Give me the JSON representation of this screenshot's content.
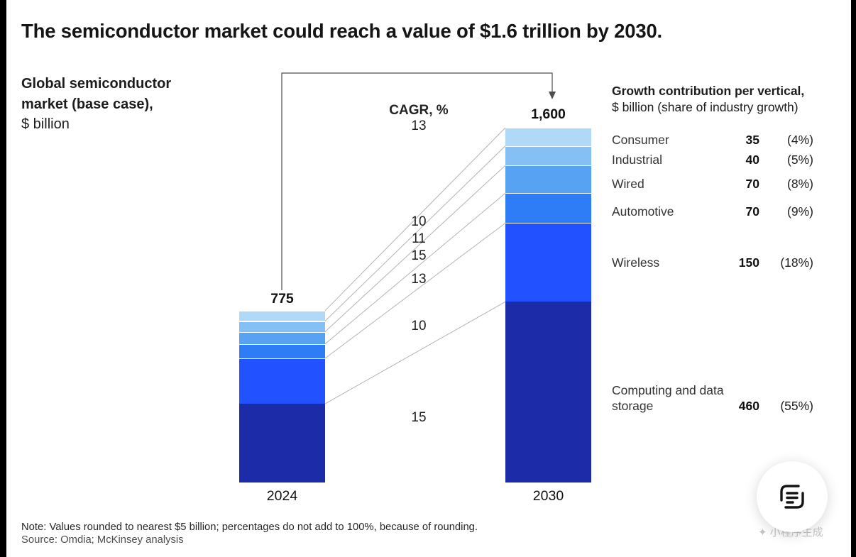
{
  "page": {
    "title": "The semiconductor market could reach a value of $1.6 trillion by 2030.",
    "note": "Note: Values rounded to nearest $5 billion; percentages do not add to 100%, because of rounding.",
    "source": "Source: Omdia; McKinsey analysis",
    "watermark": "小程序生成",
    "watermark_icon": "✦"
  },
  "chart_data": {
    "type": "bar",
    "stacked": true,
    "title": "Global semiconductor market (base case),",
    "unit": "$ billion",
    "categories": [
      "2024",
      "2030"
    ],
    "totals": [
      "775",
      "1,600"
    ],
    "cagr_header": "CAGR, %",
    "overall_cagr": "13",
    "ylim": [
      0,
      1600
    ],
    "legend_position": "none",
    "grid": false,
    "series": [
      {
        "name": "Computing and data storage",
        "color": "#1c2ba8",
        "values": [
          355,
          815
        ],
        "cagr": "15"
      },
      {
        "name": "Wireless",
        "color": "#2251ff",
        "values": [
          205,
          355
        ],
        "cagr": "10"
      },
      {
        "name": "Automotive",
        "color": "#2e7cf6",
        "values": [
          65,
          135
        ],
        "cagr": "13"
      },
      {
        "name": "Wired",
        "color": "#57a3f1",
        "values": [
          55,
          125
        ],
        "cagr": "15"
      },
      {
        "name": "Industrial",
        "color": "#84c0f4",
        "values": [
          48,
          88
        ],
        "cagr": "11"
      },
      {
        "name": "Consumer",
        "color": "#b0d9f8",
        "values": [
          47,
          82
        ],
        "cagr": "10"
      }
    ]
  },
  "right_panel": {
    "header_bold": "Growth contribution per vertical,",
    "header_regular": "$ billion (share of industry growth)",
    "rows": [
      {
        "label": "Consumer",
        "value": "35",
        "share": "(4%)"
      },
      {
        "label": "Industrial",
        "value": "40",
        "share": "(5%)"
      },
      {
        "label": "Wired",
        "value": "70",
        "share": "(8%)"
      },
      {
        "label": "Automotive",
        "value": "70",
        "share": "(9%)"
      },
      {
        "label": "Wireless",
        "value": "150",
        "share": "(18%)"
      },
      {
        "label": "Computing and data storage",
        "value": "460",
        "share": "(55%)"
      }
    ]
  }
}
